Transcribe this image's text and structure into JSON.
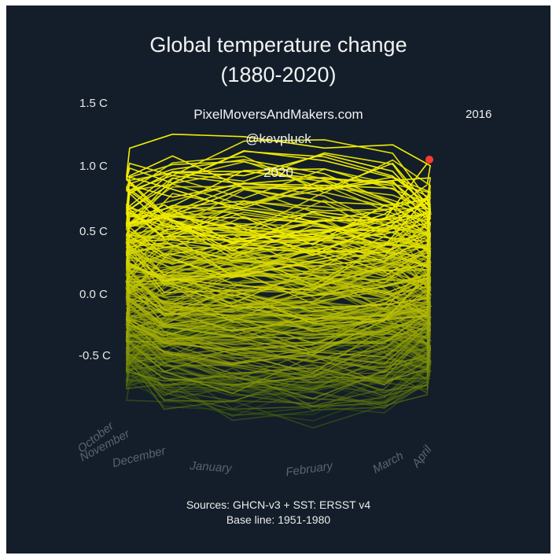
{
  "chart_data": {
    "type": "line",
    "title": "Global temperature change",
    "subtitle": "(1880-2020)",
    "y_ticks": [
      "1.5 C",
      "1.0 C",
      "0.5 C",
      "0.0 C",
      "-0.5 C"
    ],
    "ylim": [
      -0.5,
      1.5
    ],
    "months": [
      "October",
      "November",
      "December",
      "January",
      "February",
      "March",
      "April"
    ],
    "year_range": [
      1880,
      2020
    ],
    "current_year_label": "2020",
    "highlight_year_label": "2016",
    "watermark": [
      "PixelMoversAndMakers.com",
      "@kevpluck"
    ],
    "sources": "Sources: GHCN-v3 + SST: ERSST v4",
    "baseline": "Base line: 1951-1980",
    "colors": {
      "background": "#131e2a",
      "old": "#2b4a12",
      "recent": "#f5ef00",
      "marker": "#ff3b2f"
    }
  }
}
